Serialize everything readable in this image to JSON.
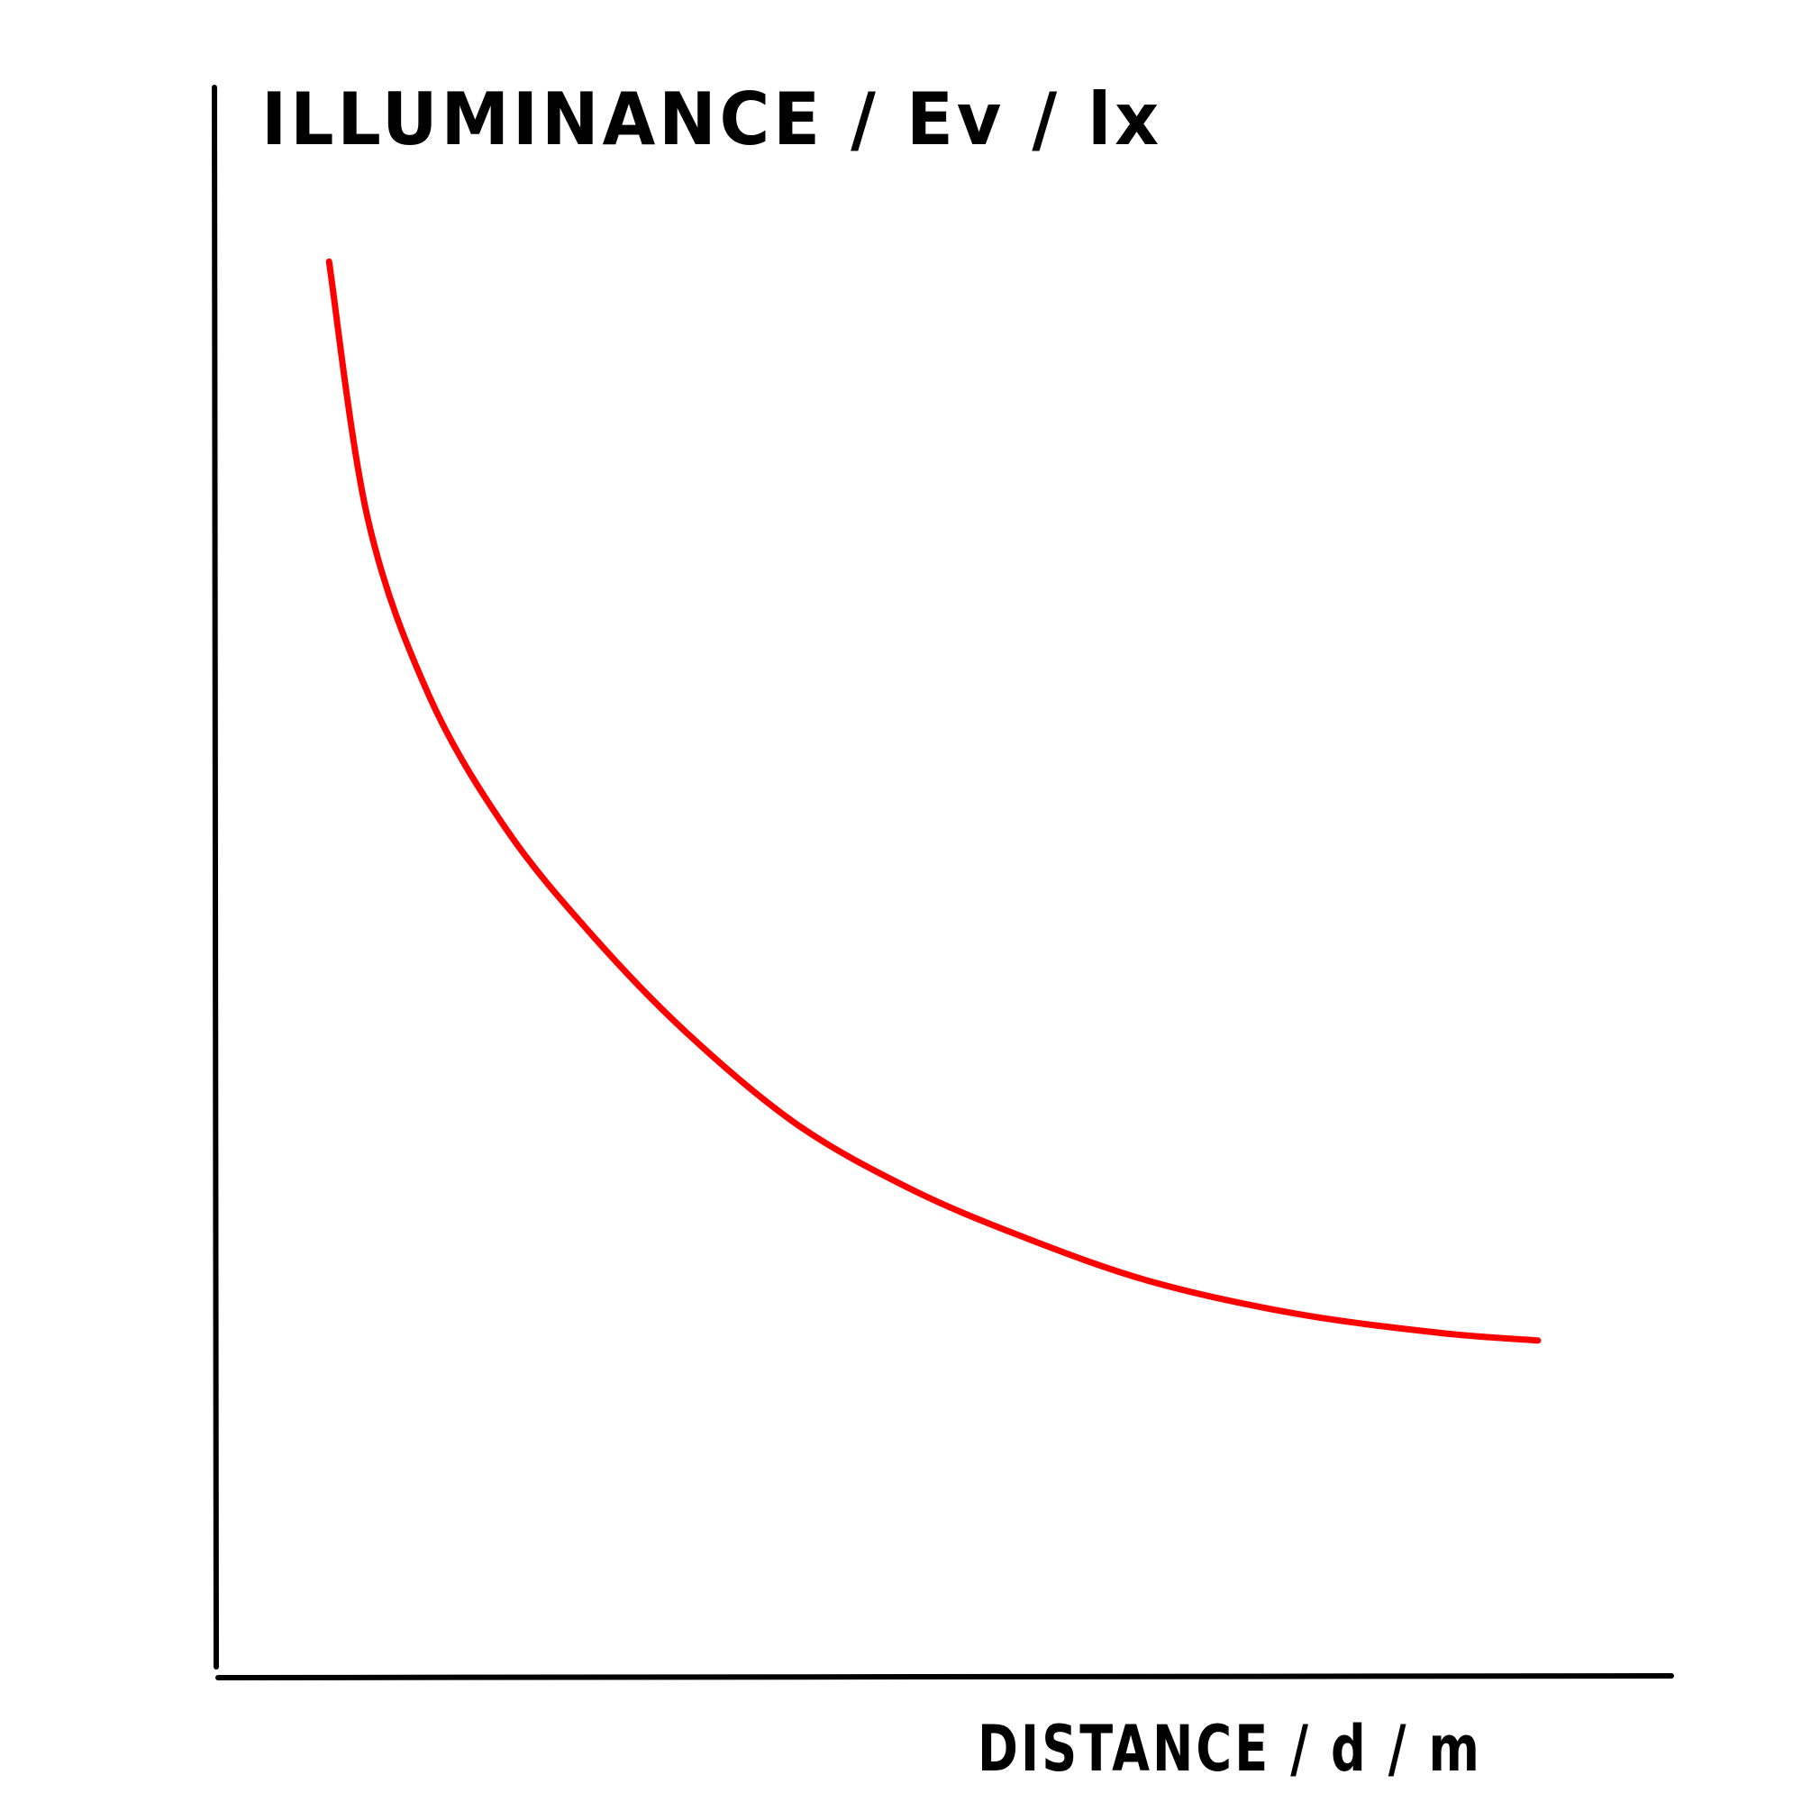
{
  "chart_data": {
    "type": "line",
    "title": "",
    "xlabel": "DISTANCE / d / m",
    "ylabel": "ILLUMINANCE / Ev / lx",
    "grid": false,
    "legend": "none",
    "series": [
      {
        "color": "#ff0000",
        "points": [
          [
            0.35,
            10.0
          ],
          [
            0.47,
            7.6
          ],
          [
            0.66,
            5.95
          ],
          [
            0.9,
            4.7
          ],
          [
            1.17,
            3.7
          ],
          [
            1.46,
            2.8
          ],
          [
            1.8,
            1.95
          ],
          [
            2.15,
            1.35
          ],
          [
            2.5,
            0.9
          ],
          [
            2.9,
            0.48
          ],
          [
            3.35,
            0.18
          ],
          [
            3.8,
            0.0
          ],
          [
            4.1,
            -0.07
          ]
        ]
      }
    ]
  }
}
